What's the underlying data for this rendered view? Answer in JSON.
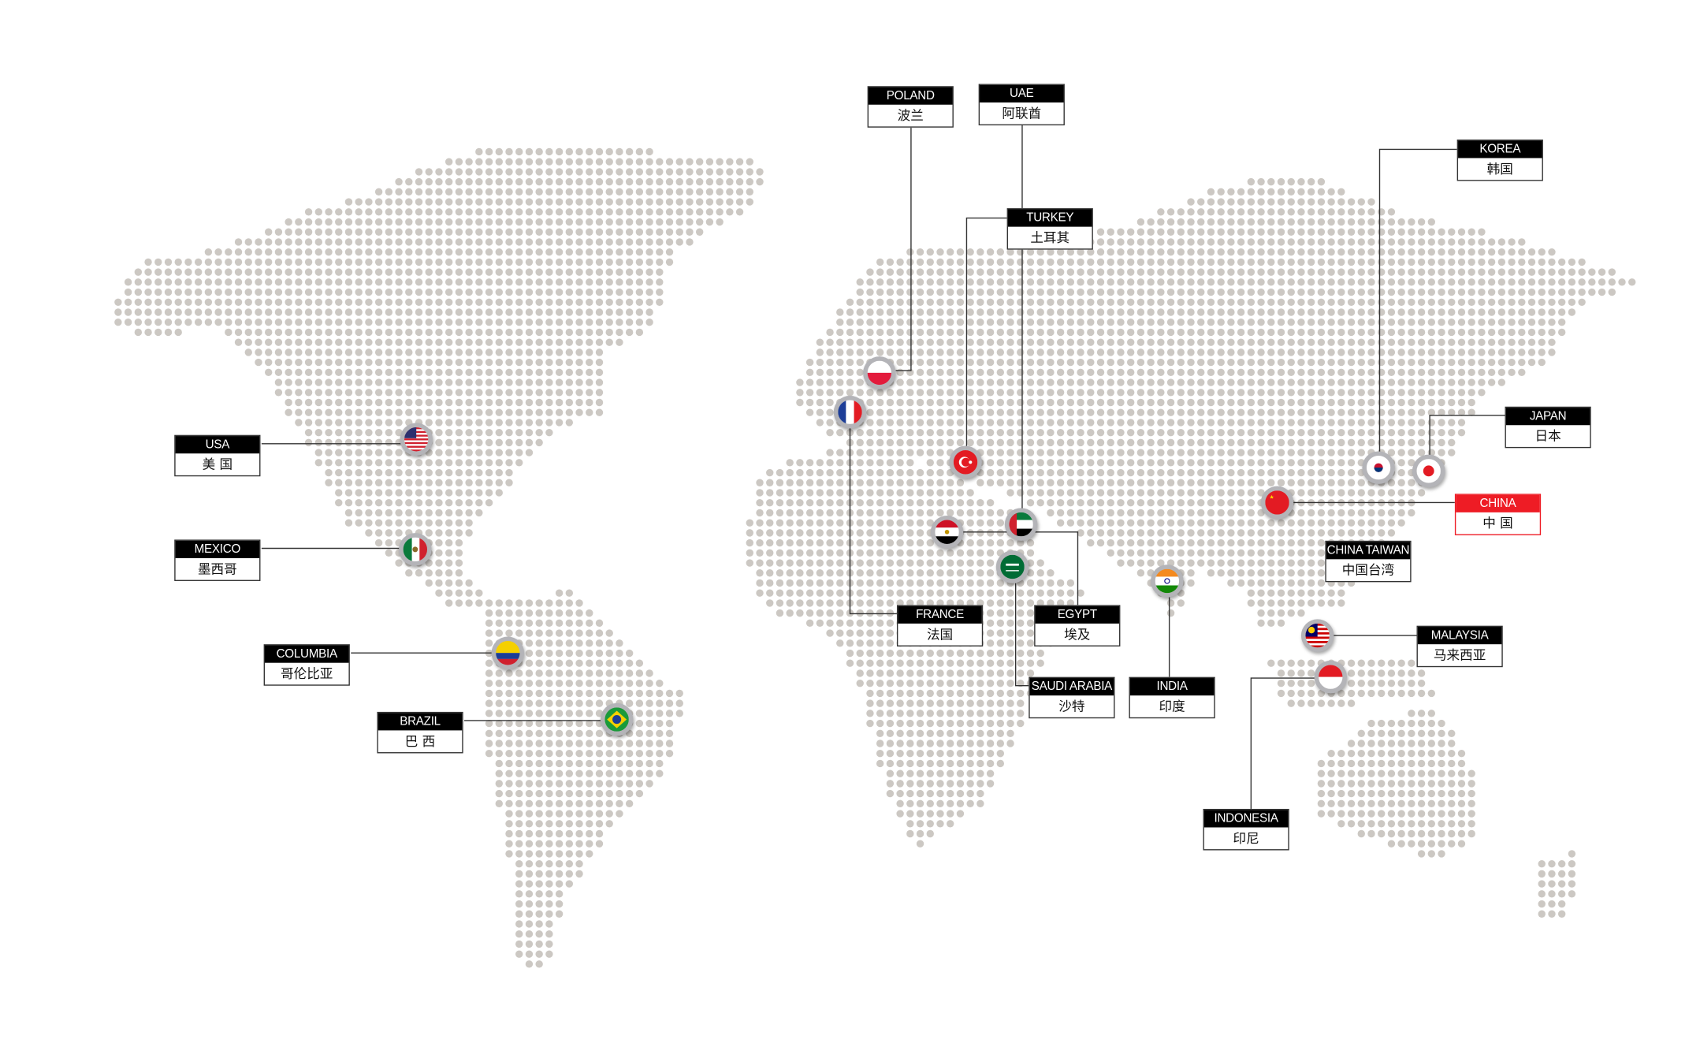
{
  "colors": {
    "dot": "#ccc8c3",
    "line": "#333333",
    "label_header": "#000000",
    "highlight": "#ee1c25"
  },
  "locations": [
    {
      "id": "usa",
      "en": "USA",
      "zh": "美 国",
      "flag_icon": "usa-flag-icon"
    },
    {
      "id": "mexico",
      "en": "MEXICO",
      "zh": "墨西哥",
      "flag_icon": "mexico-flag-icon"
    },
    {
      "id": "columbia",
      "en": "COLUMBIA",
      "zh": "哥伦比亚",
      "flag_icon": "colombia-flag-icon"
    },
    {
      "id": "brazil",
      "en": "BRAZIL",
      "zh": "巴 西",
      "flag_icon": "brazil-flag-icon"
    },
    {
      "id": "poland",
      "en": "POLAND",
      "zh": "波兰",
      "flag_icon": "poland-flag-icon"
    },
    {
      "id": "uae",
      "en": "UAE",
      "zh": "阿联酋",
      "flag_icon": "uae-flag-icon"
    },
    {
      "id": "turkey",
      "en": "TURKEY",
      "zh": "土耳其",
      "flag_icon": "turkey-flag-icon"
    },
    {
      "id": "korea",
      "en": "KOREA",
      "zh": "韩国",
      "flag_icon": "korea-flag-icon"
    },
    {
      "id": "japan",
      "en": "JAPAN",
      "zh": "日本",
      "flag_icon": "japan-flag-icon"
    },
    {
      "id": "china",
      "en": "CHINA",
      "zh": "中 国",
      "flag_icon": "china-flag-icon",
      "highlighted": true
    },
    {
      "id": "china-taiwan",
      "en": "CHINA TAIWAN",
      "zh": "中国台湾"
    },
    {
      "id": "malaysia",
      "en": "MALAYSIA",
      "zh": "马来西亚",
      "flag_icon": "malaysia-flag-icon"
    },
    {
      "id": "france",
      "en": "FRANCE",
      "zh": "法国",
      "flag_icon": "france-flag-icon"
    },
    {
      "id": "egypt",
      "en": "EGYPT",
      "zh": "埃及",
      "flag_icon": "egypt-flag-icon"
    },
    {
      "id": "saudi-arabia",
      "en": "SAUDI ARABIA",
      "zh": "沙特",
      "flag_icon": "saudi-flag-icon"
    },
    {
      "id": "india",
      "en": "INDIA",
      "zh": "印度",
      "flag_icon": "india-flag-icon"
    },
    {
      "id": "indonesia",
      "en": "INDONESIA",
      "zh": "印尼",
      "flag_icon": "indonesia-flag-icon"
    }
  ]
}
